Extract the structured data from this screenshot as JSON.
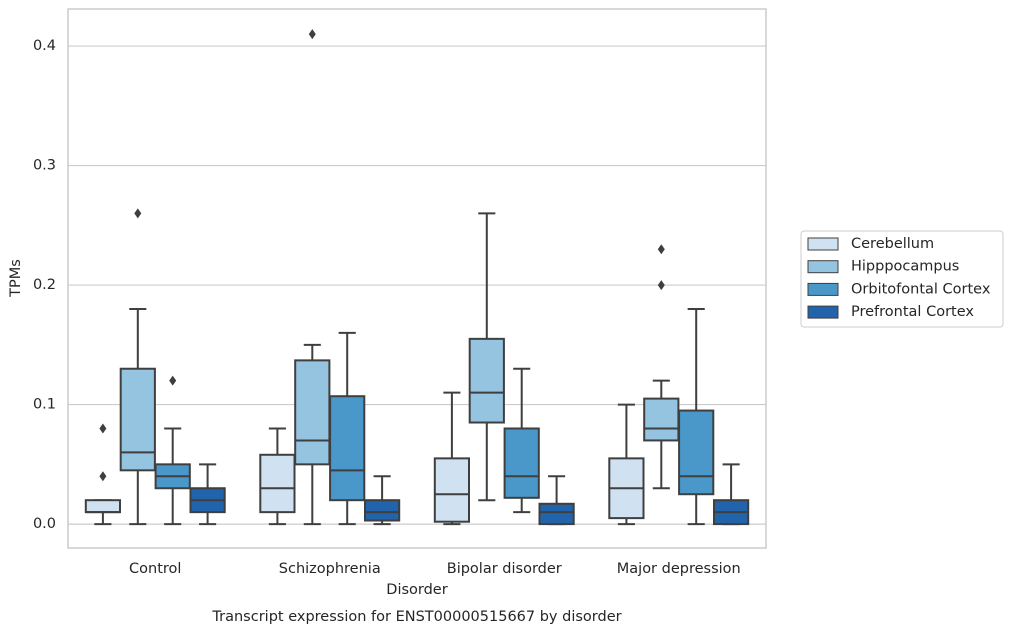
{
  "chart_data": {
    "type": "box",
    "title": "Transcript expression for ENST00000515667 by disorder",
    "xlabel": "Disorder",
    "ylabel": "TPMs",
    "categories": [
      "Control",
      "Schizophrenia",
      "Bipolar disorder",
      "Major depression"
    ],
    "ylim": [
      -0.02,
      0.431
    ],
    "yticks": [
      {
        "value": 0,
        "label": "0.0"
      },
      0.1,
      0.2,
      0.3,
      0.4
    ],
    "grid": true,
    "legend": "right",
    "edge_color": "#3f3f3f",
    "series": [
      {
        "name": "Cerebellum",
        "color": "#d0e1f2",
        "values": [
          {
            "low": 0,
            "q1": 0.01,
            "median": 0.01,
            "q3": 0.02,
            "high": 0.02,
            "outliers": [
              0.04,
              0.08
            ]
          },
          {
            "low": 0,
            "q1": 0.01,
            "median": 0.03,
            "q3": 0.058,
            "high": 0.08
          },
          {
            "low": 0,
            "q1": 0.002,
            "median": 0.025,
            "q3": 0.055,
            "high": 0.11
          },
          {
            "low": 0,
            "q1": 0.005,
            "median": 0.03,
            "q3": 0.055,
            "high": 0.1
          }
        ]
      },
      {
        "name": "Hipppocampus",
        "color": "#94c4df",
        "values": [
          {
            "low": 0,
            "q1": 0.045,
            "median": 0.06,
            "q3": 0.13,
            "high": 0.18,
            "outliers": [
              0.26
            ]
          },
          {
            "low": 0,
            "q1": 0.05,
            "median": 0.07,
            "q3": 0.137,
            "high": 0.15,
            "outliers": [
              0.41
            ]
          },
          {
            "low": 0.02,
            "q1": 0.085,
            "median": 0.11,
            "q3": 0.155,
            "high": 0.26
          },
          {
            "low": 0.03,
            "q1": 0.07,
            "median": 0.08,
            "q3": 0.105,
            "high": 0.12,
            "outliers": [
              0.2,
              0.23
            ]
          }
        ]
      },
      {
        "name": "Orbitofontal Cortex",
        "color": "#4a98c9",
        "values": [
          {
            "low": 0,
            "q1": 0.03,
            "median": 0.04,
            "q3": 0.05,
            "high": 0.08,
            "outliers": [
              0.12
            ]
          },
          {
            "low": 0,
            "q1": 0.02,
            "median": 0.045,
            "q3": 0.107,
            "high": 0.16
          },
          {
            "low": 0.01,
            "q1": 0.022,
            "median": 0.04,
            "q3": 0.08,
            "high": 0.13
          },
          {
            "low": 0,
            "q1": 0.025,
            "median": 0.04,
            "q3": 0.095,
            "high": 0.18
          }
        ]
      },
      {
        "name": "Prefrontal Cortex",
        "color": "#2164ab",
        "values": [
          {
            "low": 0,
            "q1": 0.01,
            "median": 0.02,
            "q3": 0.03,
            "high": 0.05
          },
          {
            "low": 0,
            "q1": 0.003,
            "median": 0.01,
            "q3": 0.02,
            "high": 0.04
          },
          {
            "low": 0,
            "q1": 0,
            "median": 0.01,
            "q3": 0.017,
            "high": 0.04
          },
          {
            "low": 0,
            "q1": 0,
            "median": 0.01,
            "q3": 0.02,
            "high": 0.05
          }
        ]
      }
    ]
  }
}
